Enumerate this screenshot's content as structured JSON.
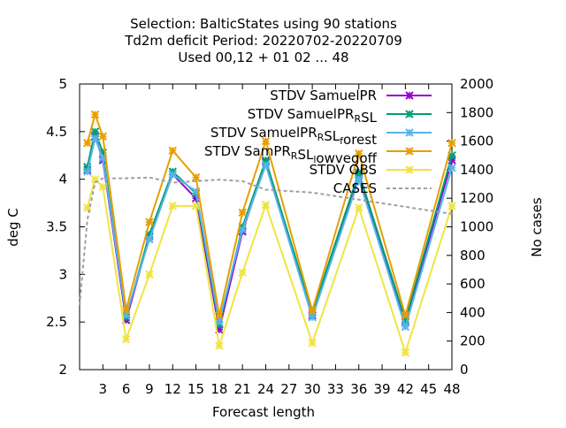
{
  "chart_data": {
    "type": "line",
    "title_lines": [
      "Selection: BalticStates using    90 stations",
      "Td2m deficit   Period: 20220702-20220709",
      "Used  00,12  + 01 02 ... 48"
    ],
    "xlabel": "Forecast length",
    "ylabel": "deg C",
    "y2label": "No cases",
    "x_ticks": [
      3,
      6,
      9,
      12,
      15,
      18,
      21,
      24,
      27,
      30,
      33,
      36,
      39,
      42,
      45,
      48
    ],
    "xlim": [
      0,
      48
    ],
    "y_ticks": [
      2,
      2.5,
      3,
      3.5,
      4,
      4.5,
      5
    ],
    "ylim": [
      2,
      5
    ],
    "y2_ticks": [
      0,
      200,
      400,
      600,
      800,
      1000,
      1200,
      1400,
      1600,
      1800,
      2000
    ],
    "y2lim": [
      0,
      2000
    ],
    "grid": false,
    "legend_position": "top-right",
    "x": [
      0,
      1,
      2,
      3,
      6,
      9,
      12,
      15,
      18,
      21,
      24,
      30,
      36,
      42,
      48
    ],
    "series": [
      {
        "name": "STDV SamuelPR",
        "color": "#9400d3",
        "marker": "x",
        "values": [
          null,
          4.1,
          4.45,
          4.2,
          2.52,
          3.4,
          4.05,
          3.8,
          2.42,
          3.45,
          4.18,
          2.57,
          4.05,
          2.5,
          4.2
        ]
      },
      {
        "name": "STDV SamuelPR_RSL",
        "color": "#009e73",
        "marker": "x",
        "values": [
          null,
          4.13,
          4.5,
          4.28,
          2.55,
          3.42,
          4.08,
          3.85,
          2.47,
          3.5,
          4.2,
          2.6,
          4.07,
          2.52,
          4.25
        ]
      },
      {
        "name": "STDV SamuelPR_RSL_forest",
        "color": "#56b4e9",
        "marker": "x",
        "values": [
          null,
          4.08,
          4.43,
          4.22,
          2.57,
          3.37,
          4.05,
          3.87,
          2.5,
          3.47,
          4.15,
          2.55,
          4.0,
          2.45,
          4.12
        ]
      },
      {
        "name": "STDV SamPR_RSL_lowvegoff",
        "color": "#e69f00",
        "marker": "x",
        "values": [
          null,
          4.38,
          4.68,
          4.45,
          2.63,
          3.55,
          4.3,
          4.02,
          2.57,
          3.65,
          4.4,
          2.62,
          4.27,
          2.57,
          4.38
        ]
      },
      {
        "name": "STDV OBS",
        "color": "#f0e442",
        "marker": "x",
        "values": [
          null,
          3.7,
          4.0,
          3.92,
          2.32,
          3.0,
          3.72,
          3.72,
          2.25,
          3.02,
          3.73,
          2.28,
          3.7,
          2.18,
          3.72
        ]
      },
      {
        "name": "CASES",
        "color": "#a0a0a0",
        "marker": "none",
        "dash": true,
        "axis": "y2",
        "values": [
          450,
          1050,
          1310,
          1340,
          1340,
          1345,
          1310,
          1320,
          1330,
          1320,
          1260,
          1240,
          1190,
          1140,
          1090
        ]
      }
    ]
  }
}
